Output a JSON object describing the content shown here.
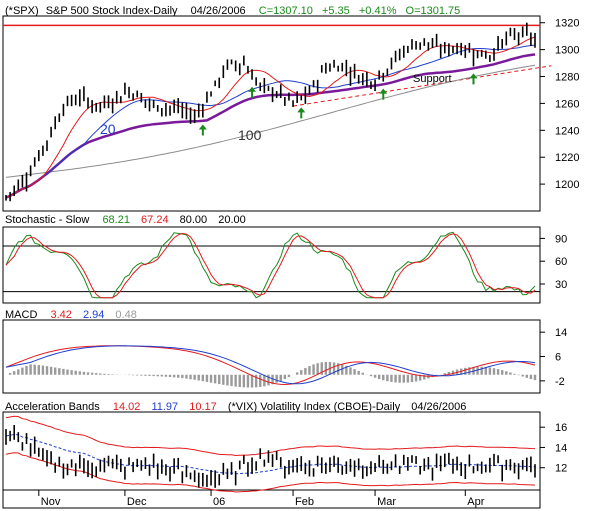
{
  "chart_data": [
    {
      "type": "candlestick",
      "panel": "price",
      "header": {
        "symbol": "(*SPX)",
        "name": "S&P 500 Stock Index-Daily",
        "date": "04/26/2006",
        "close": "C=1307.10",
        "change": "+5.35",
        "pct": "+0.41%",
        "open": "O=1301.75"
      },
      "ylim": [
        1180,
        1325
      ],
      "yticks": [
        1200,
        1220,
        1240,
        1260,
        1280,
        1300,
        1320
      ],
      "annotations": {
        "ma20": "20",
        "ma100": "100",
        "support": "Support"
      },
      "colors": {
        "ma_short": "#e41a1c",
        "ma_20": "#1f3fd0",
        "ma_50": "#7a1a9a",
        "ma_100": "#8c8c8c",
        "resistance": "#e41a1c",
        "support": "#e41a1c",
        "arrows": "#1a8a1a"
      },
      "resistance_level": 1318,
      "support_line": {
        "from": [
          70,
          1258
        ],
        "to": [
          133,
          1288
        ]
      },
      "arrows_at": [
        48,
        60,
        72,
        92,
        114
      ],
      "series_keys": [
        "close",
        "ma10",
        "ma20",
        "ma50",
        "ma100"
      ]
    },
    {
      "type": "line",
      "panel": "stochastic",
      "header": {
        "title": "Stochastic - Slow",
        "k": "68.21",
        "d": "67.24",
        "upper": "80.00",
        "lower": "20.00"
      },
      "ylim": [
        5,
        105
      ],
      "yticks": [
        30,
        60,
        90
      ],
      "levels": [
        80,
        20
      ],
      "colors": {
        "k": "#1a8a1a",
        "d": "#e41a1c"
      }
    },
    {
      "type": "line",
      "panel": "macd",
      "header": {
        "title": "MACD",
        "macd": "3.42",
        "signal": "2.94",
        "hist": "0.48"
      },
      "ylim": [
        -6,
        18
      ],
      "yticks": [
        -2,
        6,
        14
      ],
      "ytick_labels": [
        "-2",
        "6",
        "14"
      ],
      "colors": {
        "macd": "#e41a1c",
        "signal": "#1f3fd0",
        "hist": "#9a9a9a"
      }
    },
    {
      "type": "candlestick",
      "panel": "acceleration",
      "header": {
        "title": "Acceleration Bands",
        "upper": "14.02",
        "mid": "11.97",
        "lower": "10.17",
        "symbol": "(*VIX) Volatility Index (CBOE)-Daily",
        "date": "04/26/2006"
      },
      "ylim": [
        9.8,
        17.5
      ],
      "yticks": [
        12,
        14,
        16
      ],
      "colors": {
        "upper": "#e41a1c",
        "mid": "#1f3fd0",
        "lower": "#e41a1c"
      }
    }
  ],
  "x_axis": {
    "labels": [
      "Nov",
      "Dec",
      "06",
      "Feb",
      "Mar",
      "Apr"
    ],
    "label_index": [
      8,
      29,
      50,
      70,
      90,
      112
    ],
    "bars": 130
  }
}
